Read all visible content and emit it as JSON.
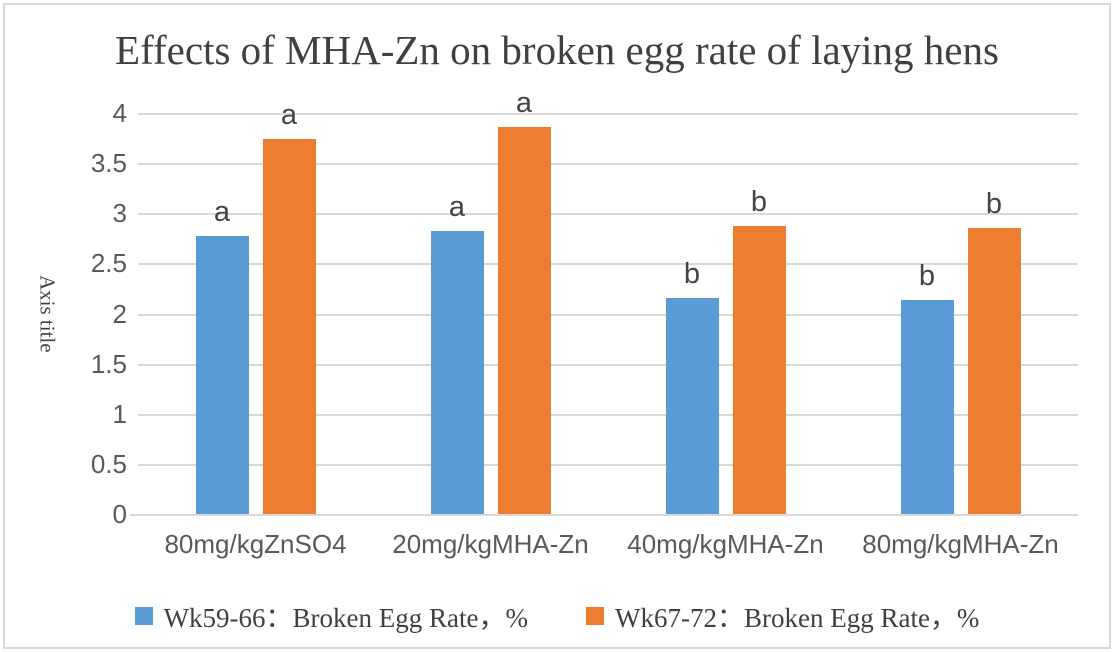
{
  "chart_data": {
    "type": "bar",
    "title": "Effects of MHA-Zn on broken egg rate of laying hens",
    "xlabel": "",
    "ylabel": "Axis title",
    "categories": [
      "80mg/kgZnSO4",
      "20mg/kgMHA-Zn",
      "40mg/kgMHA-Zn",
      "80mg/kgMHA-Zn"
    ],
    "series": [
      {
        "name": "Wk59-66：Broken Egg Rate，%",
        "color": "#5B9BD5",
        "values": [
          2.77,
          2.82,
          2.16,
          2.14
        ],
        "significance_letters": [
          "a",
          "a",
          "b",
          "b"
        ]
      },
      {
        "name": "Wk67-72：Broken Egg Rate，%",
        "color": "#ED7D31",
        "values": [
          3.74,
          3.86,
          2.87,
          2.85
        ],
        "significance_letters": [
          "a",
          "a",
          "b",
          "b"
        ]
      }
    ],
    "ylim": [
      0,
      4
    ],
    "yticks": [
      0,
      0.5,
      1,
      1.5,
      2,
      2.5,
      3,
      3.5,
      4
    ],
    "grid": true,
    "legend_position": "bottom",
    "colors": {
      "gridline": "#D9D9D9",
      "tick_text": "#595959",
      "title_text": "#404040",
      "frame_border": "#D9D9D9",
      "background": "#FFFFFF"
    }
  }
}
